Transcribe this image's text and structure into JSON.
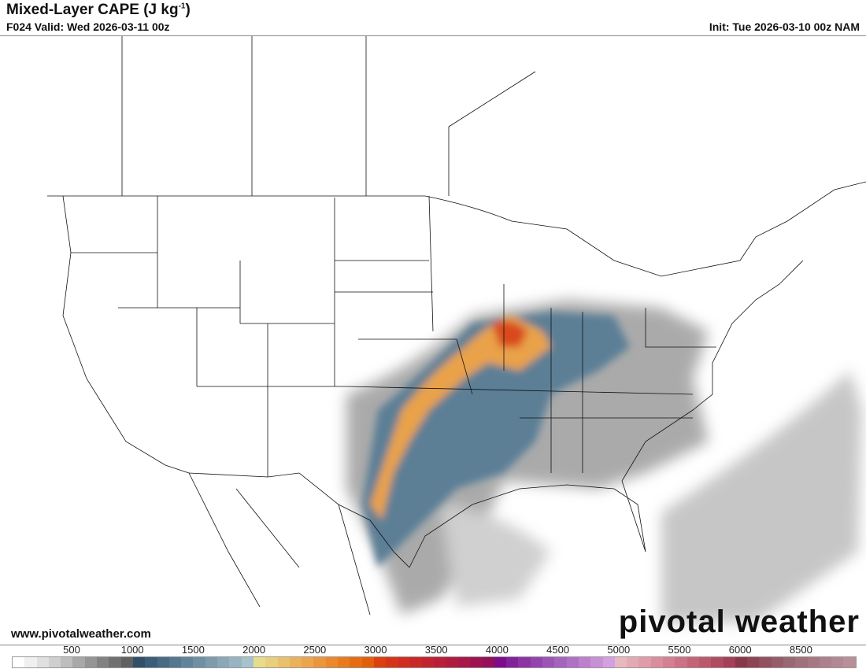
{
  "header": {
    "title": "Mixed-Layer CAPE (J kg",
    "title_sup": "-1",
    "title_close": ")",
    "valid": "F024 Valid: Wed 2026-03-11 00z",
    "init": "Init: Tue 2026-03-10 00z NAM"
  },
  "footer": {
    "website": "www.pivotalweather.com",
    "logo": "pivotal weather"
  },
  "colorbar": {
    "labels": [
      "500",
      "1000",
      "1500",
      "2000",
      "2500",
      "3000",
      "3500",
      "4000",
      "4500",
      "5000",
      "5500",
      "6000",
      "8500"
    ],
    "colors": {
      "gray": [
        "#ffffff",
        "#f0f0f0",
        "#e0e0e0",
        "#cfcfcf",
        "#bdbdbd",
        "#a8a8a8",
        "#959595",
        "#828282",
        "#707070",
        "#606060"
      ],
      "blue": [
        "#30506a",
        "#3c5d77",
        "#486a83",
        "#55778f",
        "#62849a",
        "#6f90a4",
        "#7c9cae",
        "#8aa8b8",
        "#98b4c2",
        "#a6c2cc"
      ],
      "orange": [
        "#e6dc8c",
        "#e8cf7c",
        "#eac06c",
        "#ebb25c",
        "#eca54c",
        "#ec963c",
        "#eb882c",
        "#e97a1e",
        "#e66c12",
        "#e35e08"
      ],
      "red": [
        "#dc3f10",
        "#d63618",
        "#cf2e20",
        "#c82828",
        "#c12430",
        "#b92038",
        "#b01c40",
        "#a81848",
        "#9e1450",
        "#941058"
      ],
      "purple": [
        "#7c0c8c",
        "#84209a",
        "#8c34a4",
        "#9444ae",
        "#9c54b6",
        "#a464be",
        "#b070c6",
        "#bc80ce",
        "#c890d6",
        "#d4a0e0"
      ],
      "pink": [
        "#e8b8c0",
        "#e4aab4",
        "#e09ca8",
        "#da8e9c",
        "#d48090",
        "#cc7284",
        "#c46478",
        "#bc586c",
        "#b04c60",
        "#a44058"
      ],
      "dark": [
        "#8a3848",
        "#8e4454",
        "#925060",
        "#965c6a",
        "#9a6874",
        "#a0707c",
        "#a67884",
        "#ac808c",
        "#b28894",
        "#b8909a"
      ]
    }
  },
  "map": {
    "field": "Mixed-Layer CAPE"
  }
}
